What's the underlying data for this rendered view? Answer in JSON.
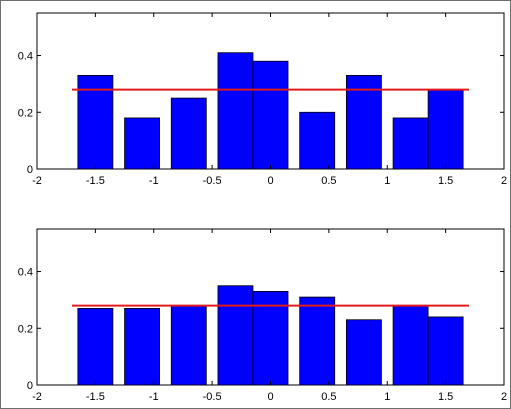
{
  "chart_data": [
    {
      "type": "bar",
      "x": [
        -1.5,
        -1.1,
        -0.7,
        -0.3,
        0.0,
        0.4,
        0.8,
        1.2,
        1.5
      ],
      "values": [
        0.33,
        0.18,
        0.25,
        0.41,
        0.38,
        0.2,
        0.33,
        0.18,
        0.28
      ],
      "reference_line": {
        "value": 0.28,
        "x_range": [
          -1.7,
          1.7
        ]
      },
      "xlim": [
        -2,
        2
      ],
      "ylim": [
        0,
        0.55
      ],
      "xticks": [
        "-2",
        "-1.5",
        "-1",
        "-0.5",
        "0",
        "0.5",
        "1",
        "1.5",
        "2"
      ],
      "yticks": [
        "0",
        "0.2",
        "0.4"
      ],
      "bar_color": "#0000ff",
      "line_color": "#e31a1c",
      "grid": false
    },
    {
      "type": "bar",
      "x": [
        -1.5,
        -1.1,
        -0.7,
        -0.3,
        0.0,
        0.4,
        0.8,
        1.2,
        1.5
      ],
      "values": [
        0.27,
        0.27,
        0.28,
        0.35,
        0.33,
        0.31,
        0.23,
        0.28,
        0.24
      ],
      "reference_line": {
        "value": 0.28,
        "x_range": [
          -1.7,
          1.7
        ]
      },
      "xlim": [
        -2,
        2
      ],
      "ylim": [
        0,
        0.55
      ],
      "xticks": [
        "-2",
        "-1.5",
        "-1",
        "-0.5",
        "0",
        "0.5",
        "1",
        "1.5",
        "2"
      ],
      "yticks": [
        "0",
        "0.2",
        "0.4"
      ],
      "bar_color": "#0000ff",
      "line_color": "#e31a1c",
      "grid": false
    }
  ]
}
